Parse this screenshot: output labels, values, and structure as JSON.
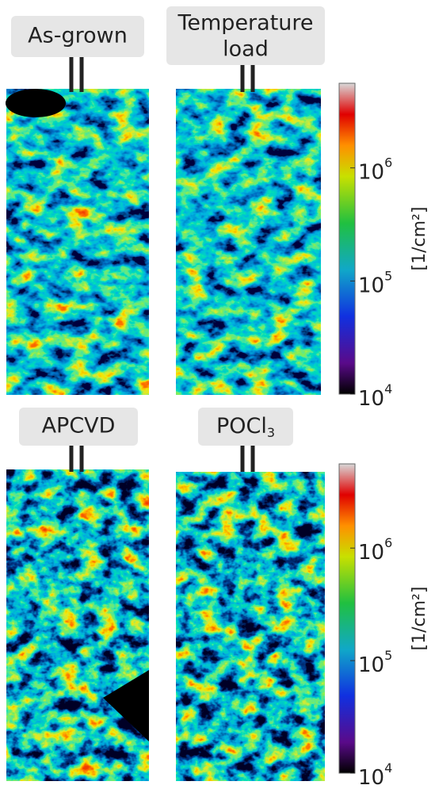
{
  "panels": [
    {
      "label": "As-grown"
    },
    {
      "label": [
        "Temperature",
        "load"
      ]
    },
    {
      "label": "APCVD"
    },
    {
      "label": "POCl",
      "subscript": "3"
    }
  ],
  "colorbars": [
    {
      "clim": [
        10000,
        5600000
      ],
      "log_scale": true,
      "ticks": [
        {
          "value": 10000,
          "base": "10",
          "exp": "4"
        },
        {
          "value": 100000,
          "base": "10",
          "exp": "5"
        },
        {
          "value": 1000000,
          "base": "10",
          "exp": "6"
        }
      ],
      "unit": "[1/cm²]"
    },
    {
      "clim": [
        10000,
        5600000
      ],
      "log_scale": true,
      "ticks": [
        {
          "value": 10000,
          "base": "10",
          "exp": "4"
        },
        {
          "value": 100000,
          "base": "10",
          "exp": "5"
        },
        {
          "value": 1000000,
          "base": "10",
          "exp": "6"
        }
      ],
      "unit": "[1/cm²]"
    }
  ]
}
